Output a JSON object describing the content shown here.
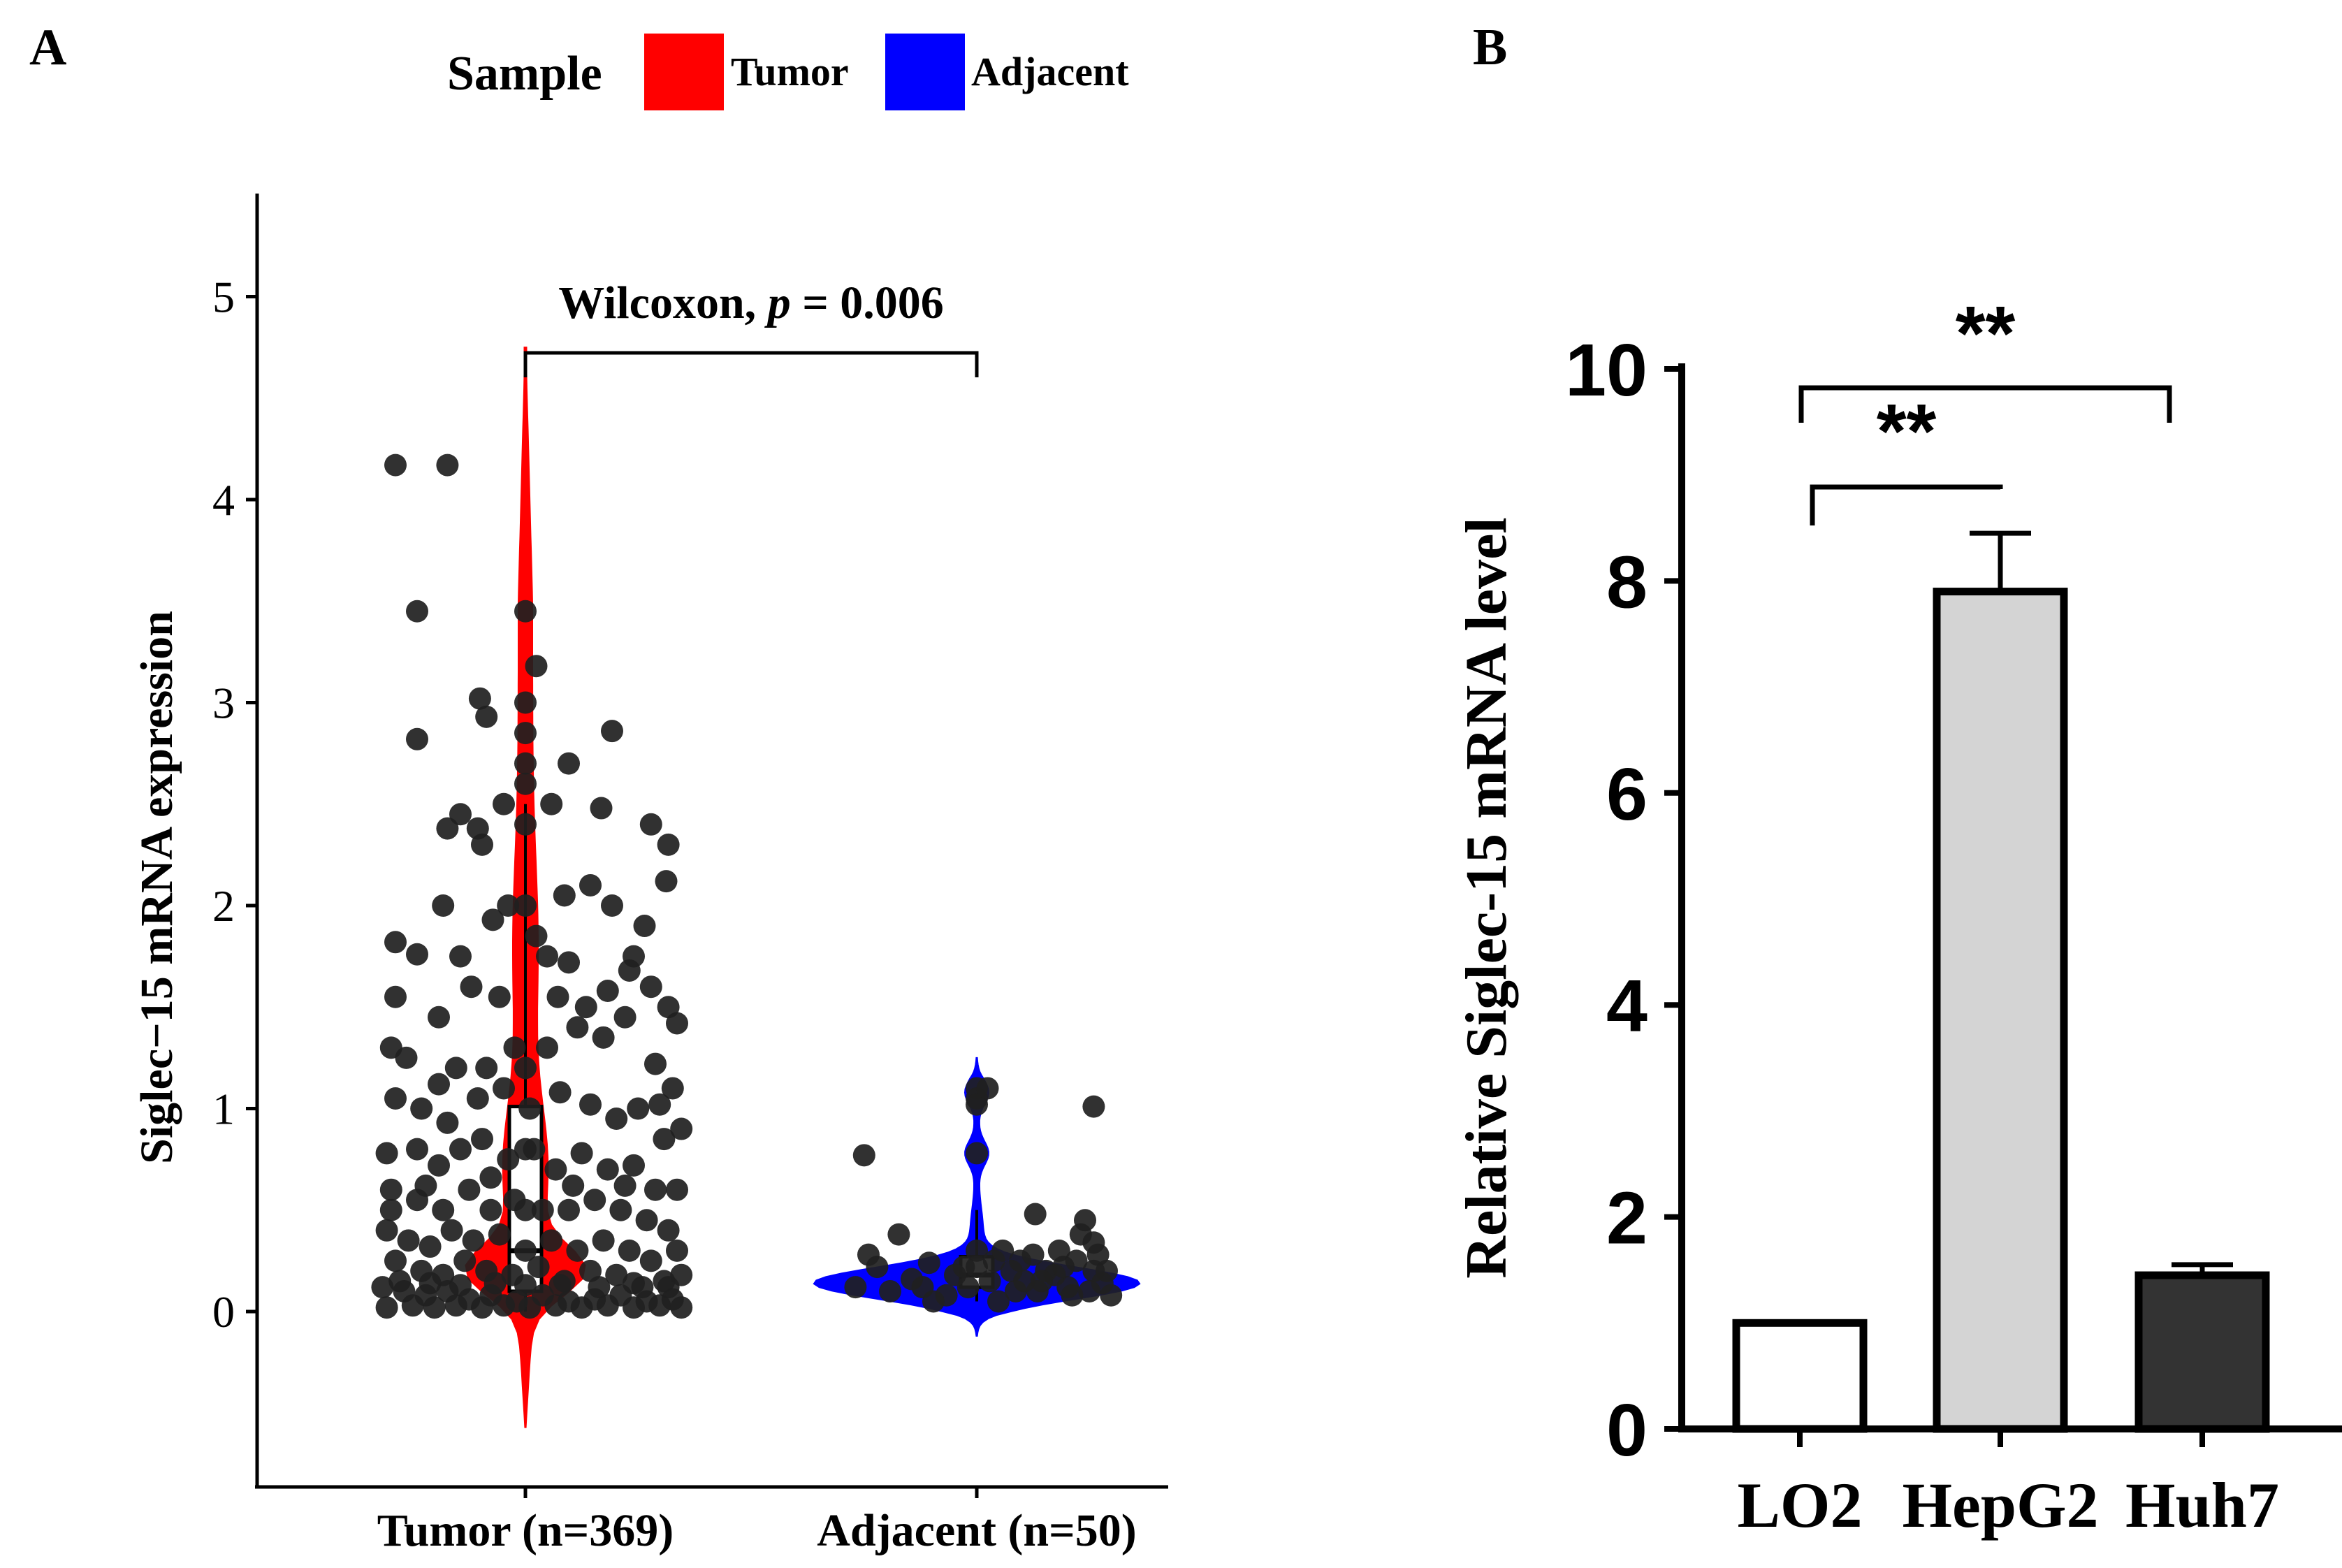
{
  "panels": {
    "a_label": "A",
    "b_label": "B"
  },
  "legend": {
    "title": "Sample",
    "items": [
      {
        "label": "Tumor",
        "color": "#ff0000"
      },
      {
        "label": "Adjacent",
        "color": "#0000ff"
      }
    ]
  },
  "chart_data": [
    {
      "type": "violin",
      "panel": "A",
      "ylabel": "Siglec−15 mRNA expression",
      "ylim": [
        -0.85,
        5.45
      ],
      "yticks": [
        "0",
        "1",
        "2",
        "3",
        "4",
        "5"
      ],
      "annotation": {
        "test": "Wilcoxon, ",
        "p_symbol": "p",
        "rest": " = 0.006"
      },
      "groups": [
        {
          "name": "Tumor (n=369)",
          "color": "#ff0000",
          "violin_range": [
            -0.57,
            4.75
          ],
          "box": {
            "q1": 0.1,
            "median": 0.3,
            "q3": 1.01,
            "whisker_low": 0.0,
            "whisker_high": 2.5
          },
          "points": [
            [
              -0.6,
              4.17
            ],
            [
              -0.36,
              4.17
            ],
            [
              -0.5,
              3.45
            ],
            [
              0.0,
              3.45
            ],
            [
              -0.5,
              2.82
            ],
            [
              -0.21,
              3.02
            ],
            [
              0.05,
              3.18
            ],
            [
              -0.18,
              2.93
            ],
            [
              0.2,
              2.7
            ],
            [
              0.4,
              2.86
            ],
            [
              -0.3,
              2.45
            ],
            [
              -0.36,
              2.38
            ],
            [
              -0.22,
              2.38
            ],
            [
              -0.1,
              2.5
            ],
            [
              0.12,
              2.5
            ],
            [
              -0.2,
              2.3
            ],
            [
              0.3,
              2.1
            ],
            [
              0.35,
              2.48
            ],
            [
              0.58,
              2.4
            ],
            [
              0.66,
              2.3
            ],
            [
              0.65,
              2.12
            ],
            [
              0.4,
              2.0
            ],
            [
              -0.38,
              2.0
            ],
            [
              -0.08,
              2.0
            ],
            [
              0.18,
              2.05
            ],
            [
              0.55,
              1.9
            ],
            [
              -0.6,
              1.82
            ],
            [
              -0.5,
              1.76
            ],
            [
              -0.3,
              1.75
            ],
            [
              -0.15,
              1.93
            ],
            [
              0.05,
              1.85
            ],
            [
              0.1,
              1.75
            ],
            [
              0.2,
              1.72
            ],
            [
              0.5,
              1.75
            ],
            [
              -0.6,
              1.55
            ],
            [
              -0.4,
              1.45
            ],
            [
              -0.25,
              1.6
            ],
            [
              -0.12,
              1.55
            ],
            [
              0.15,
              1.55
            ],
            [
              0.28,
              1.5
            ],
            [
              0.38,
              1.58
            ],
            [
              0.48,
              1.68
            ],
            [
              0.58,
              1.6
            ],
            [
              0.66,
              1.5
            ],
            [
              0.7,
              1.42
            ],
            [
              -0.62,
              1.3
            ],
            [
              -0.55,
              1.25
            ],
            [
              -0.4,
              1.12
            ],
            [
              -0.32,
              1.2
            ],
            [
              -0.18,
              1.2
            ],
            [
              -0.05,
              1.3
            ],
            [
              0.1,
              1.3
            ],
            [
              0.24,
              1.4
            ],
            [
              0.36,
              1.35
            ],
            [
              0.46,
              1.45
            ],
            [
              0.6,
              1.22
            ],
            [
              0.68,
              1.1
            ],
            [
              -0.6,
              1.05
            ],
            [
              -0.48,
              1.0
            ],
            [
              -0.36,
              0.93
            ],
            [
              -0.22,
              1.05
            ],
            [
              -0.1,
              1.1
            ],
            [
              0.02,
              1.0
            ],
            [
              0.16,
              1.08
            ],
            [
              0.3,
              1.02
            ],
            [
              0.42,
              0.95
            ],
            [
              0.52,
              1.0
            ],
            [
              0.64,
              0.85
            ],
            [
              0.72,
              0.9
            ],
            [
              -0.64,
              0.78
            ],
            [
              -0.5,
              0.8
            ],
            [
              -0.4,
              0.72
            ],
            [
              -0.3,
              0.8
            ],
            [
              -0.2,
              0.85
            ],
            [
              -0.08,
              0.75
            ],
            [
              0.04,
              0.8
            ],
            [
              0.14,
              0.7
            ],
            [
              0.26,
              0.78
            ],
            [
              0.38,
              0.7
            ],
            [
              0.5,
              0.72
            ],
            [
              0.6,
              0.6
            ],
            [
              0.7,
              0.6
            ],
            [
              -0.62,
              0.6
            ],
            [
              -0.5,
              0.55
            ],
            [
              -0.38,
              0.5
            ],
            [
              -0.26,
              0.6
            ],
            [
              -0.16,
              0.5
            ],
            [
              -0.05,
              0.55
            ],
            [
              0.08,
              0.5
            ],
            [
              0.2,
              0.5
            ],
            [
              0.32,
              0.55
            ],
            [
              0.44,
              0.5
            ],
            [
              0.56,
              0.45
            ],
            [
              0.66,
              0.4
            ],
            [
              -0.64,
              0.4
            ],
            [
              -0.54,
              0.35
            ],
            [
              -0.44,
              0.32
            ],
            [
              -0.34,
              0.4
            ],
            [
              -0.24,
              0.35
            ],
            [
              -0.12,
              0.38
            ],
            [
              0.0,
              0.3
            ],
            [
              0.12,
              0.35
            ],
            [
              0.24,
              0.3
            ],
            [
              0.36,
              0.35
            ],
            [
              0.48,
              0.3
            ],
            [
              0.58,
              0.25
            ],
            [
              0.7,
              0.3
            ],
            [
              -0.6,
              0.25
            ],
            [
              -0.48,
              0.2
            ],
            [
              -0.38,
              0.18
            ],
            [
              -0.28,
              0.25
            ],
            [
              -0.18,
              0.2
            ],
            [
              -0.06,
              0.18
            ],
            [
              0.06,
              0.22
            ],
            [
              0.18,
              0.15
            ],
            [
              0.3,
              0.2
            ],
            [
              0.42,
              0.18
            ],
            [
              0.54,
              0.12
            ],
            [
              0.64,
              0.15
            ],
            [
              0.72,
              0.18
            ],
            [
              -0.66,
              0.12
            ],
            [
              -0.56,
              0.1
            ],
            [
              -0.46,
              0.08
            ],
            [
              -0.36,
              0.1
            ],
            [
              -0.26,
              0.06
            ],
            [
              -0.16,
              0.08
            ],
            [
              -0.04,
              0.05
            ],
            [
              0.08,
              0.08
            ],
            [
              0.2,
              0.05
            ],
            [
              0.32,
              0.06
            ],
            [
              0.44,
              0.08
            ],
            [
              0.56,
              0.05
            ],
            [
              0.68,
              0.06
            ],
            [
              -0.64,
              0.02
            ],
            [
              -0.52,
              0.03
            ],
            [
              -0.42,
              0.02
            ],
            [
              -0.32,
              0.03
            ],
            [
              -0.2,
              0.02
            ],
            [
              -0.1,
              0.03
            ],
            [
              0.02,
              0.02
            ],
            [
              0.14,
              0.03
            ],
            [
              0.26,
              0.02
            ],
            [
              0.38,
              0.03
            ],
            [
              0.5,
              0.02
            ],
            [
              0.62,
              0.03
            ],
            [
              0.72,
              0.02
            ],
            [
              -0.58,
              0.15
            ],
            [
              -0.44,
              0.14
            ],
            [
              -0.3,
              0.13
            ],
            [
              -0.14,
              0.14
            ],
            [
              0.0,
              0.13
            ],
            [
              0.0,
              0.5
            ],
            [
              0.0,
              0.8
            ],
            [
              0.0,
              1.2
            ],
            [
              0.0,
              2.0
            ],
            [
              0.0,
              2.6
            ],
            [
              0.0,
              2.7
            ],
            [
              0.0,
              2.85
            ],
            [
              0.0,
              3.0
            ],
            [
              0.0,
              2.4
            ],
            [
              0.16,
              0.13
            ],
            [
              0.34,
              0.12
            ],
            [
              0.5,
              0.14
            ],
            [
              0.66,
              0.12
            ],
            [
              -0.62,
              0.5
            ],
            [
              -0.46,
              0.62
            ],
            [
              -0.16,
              0.66
            ],
            [
              0.22,
              0.62
            ],
            [
              0.46,
              0.62
            ],
            [
              0.62,
              1.02
            ]
          ]
        },
        {
          "name": "Adjacent (n=50)",
          "color": "#0000ff",
          "violin_range": [
            -0.12,
            1.25
          ],
          "box": {
            "q1": 0.12,
            "median": 0.18,
            "q3": 0.27,
            "whisker_low": 0.05,
            "whisker_high": 0.5
          },
          "points": [
            [
              -0.52,
              0.77
            ],
            [
              -0.36,
              0.38
            ],
            [
              -0.56,
              0.12
            ],
            [
              -0.46,
              0.22
            ],
            [
              -0.4,
              0.1
            ],
            [
              -0.3,
              0.16
            ],
            [
              -0.22,
              0.24
            ],
            [
              -0.14,
              0.08
            ],
            [
              -0.06,
              0.22
            ],
            [
              -0.04,
              0.12
            ],
            [
              0.0,
              1.1
            ],
            [
              0.0,
              1.05
            ],
            [
              0.0,
              1.02
            ],
            [
              0.05,
              1.1
            ],
            [
              0.0,
              0.78
            ],
            [
              0.0,
              0.3
            ],
            [
              0.0,
              0.22
            ],
            [
              0.06,
              0.15
            ],
            [
              0.08,
              0.25
            ],
            [
              0.1,
              0.05
            ],
            [
              0.12,
              0.3
            ],
            [
              0.16,
              0.2
            ],
            [
              0.18,
              0.1
            ],
            [
              0.2,
              0.25
            ],
            [
              0.22,
              0.15
            ],
            [
              0.26,
              0.28
            ],
            [
              0.28,
              0.1
            ],
            [
              0.32,
              0.2
            ],
            [
              0.36,
              0.18
            ],
            [
              0.38,
              0.3
            ],
            [
              0.42,
              0.12
            ],
            [
              0.46,
              0.25
            ],
            [
              0.48,
              0.38
            ],
            [
              0.52,
              0.1
            ],
            [
              0.54,
              0.2
            ],
            [
              0.56,
              0.28
            ],
            [
              0.58,
              0.14
            ],
            [
              0.62,
              0.08
            ],
            [
              0.27,
              0.48
            ],
            [
              0.5,
              0.45
            ],
            [
              0.54,
              0.34
            ],
            [
              -0.5,
              0.28
            ],
            [
              -0.2,
              0.05
            ],
            [
              -0.1,
              0.18
            ],
            [
              0.3,
              0.15
            ],
            [
              0.4,
              0.22
            ],
            [
              0.44,
              0.08
            ],
            [
              0.6,
              0.2
            ],
            [
              0.54,
              1.01
            ],
            [
              -0.25,
              0.12
            ]
          ]
        }
      ]
    },
    {
      "type": "bar",
      "panel": "B",
      "ylabel": "Relative Siglec-15 mRNA level",
      "ylim": [
        0,
        10
      ],
      "yticks": [
        "0",
        "2",
        "4",
        "6",
        "8",
        "10"
      ],
      "categories": [
        "LO2",
        "HepG2",
        "Huh7"
      ],
      "values": [
        1.0,
        7.9,
        1.45
      ],
      "errors": [
        0.0,
        0.55,
        0.1
      ],
      "fills": [
        "#ffffff",
        "#d4d4d4",
        "#333333"
      ],
      "significance": [
        {
          "from": 0,
          "to": 1,
          "label": "**"
        },
        {
          "from": 0,
          "to": 2,
          "label": "**"
        }
      ]
    }
  ]
}
